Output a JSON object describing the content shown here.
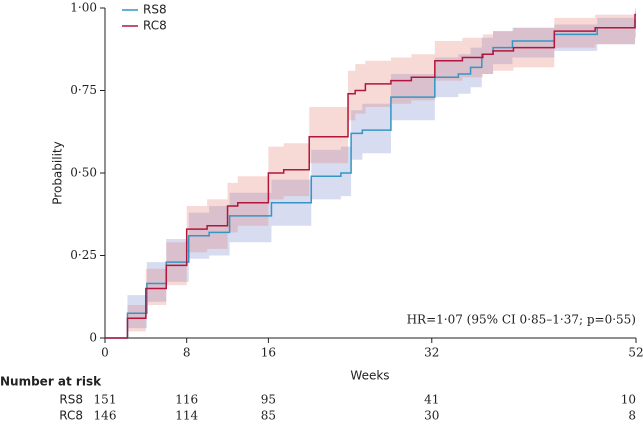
{
  "chart_data": {
    "type": "step",
    "x_label": "Weeks",
    "y_label": "Probability",
    "annotation": "HR=1·07 (95% CI 0·85–1·37; p=0·55)",
    "legend": "top-left",
    "xlim": [
      0,
      52
    ],
    "xticks": [
      0,
      8,
      16,
      32,
      52
    ],
    "ylim": [
      0,
      1
    ],
    "yticks": [
      {
        "value": 0,
        "label": "0"
      },
      {
        "value": 0.25,
        "label": "0·25"
      },
      {
        "value": 0.5,
        "label": "0·50"
      },
      {
        "value": 0.75,
        "label": "0·75"
      },
      {
        "value": 1,
        "label": "1·00"
      }
    ],
    "series": [
      {
        "name": "RS8",
        "color": "#3596c4",
        "band_color": "rgba(110,130,205,0.28)",
        "x": [
          0,
          2.2,
          4.1,
          6,
          8.2,
          10.2,
          12.2,
          16.3,
          20.2,
          23.1,
          24.1,
          25.2,
          28,
          32.3,
          34.6,
          35.8,
          36.9,
          38,
          39.9,
          44,
          48.2,
          51.9
        ],
        "values": [
          0,
          0.075,
          0.165,
          0.23,
          0.31,
          0.32,
          0.37,
          0.41,
          0.49,
          0.5,
          0.62,
          0.63,
          0.73,
          0.79,
          0.8,
          0.82,
          0.86,
          0.88,
          0.9,
          0.92,
          0.94,
          0.96
        ],
        "lower": [
          0,
          0.03,
          0.11,
          0.17,
          0.24,
          0.25,
          0.29,
          0.34,
          0.42,
          0.43,
          0.54,
          0.56,
          0.66,
          0.73,
          0.74,
          0.76,
          0.8,
          0.83,
          0.85,
          0.87,
          0.89,
          0.91
        ],
        "upper": [
          0,
          0.13,
          0.23,
          0.3,
          0.38,
          0.4,
          0.44,
          0.48,
          0.57,
          0.58,
          0.69,
          0.71,
          0.8,
          0.85,
          0.86,
          0.88,
          0.91,
          0.93,
          0.94,
          0.95,
          0.97,
          0.99
        ]
      },
      {
        "name": "RC8",
        "color": "#b3153c",
        "band_color": "rgba(228,120,108,0.28)",
        "x": [
          0,
          2.2,
          4,
          6,
          8,
          10,
          12,
          13,
          16,
          17.5,
          20,
          23.8,
          24.5,
          25.5,
          28,
          30,
          32.3,
          35,
          37,
          38,
          40,
          44,
          48,
          51.9
        ],
        "values": [
          0,
          0.06,
          0.15,
          0.22,
          0.33,
          0.34,
          0.4,
          0.41,
          0.5,
          0.51,
          0.61,
          0.74,
          0.75,
          0.77,
          0.78,
          0.79,
          0.84,
          0.85,
          0.86,
          0.87,
          0.88,
          0.93,
          0.94,
          0.98
        ],
        "lower": [
          0,
          0.02,
          0.1,
          0.16,
          0.26,
          0.27,
          0.32,
          0.34,
          0.42,
          0.43,
          0.53,
          0.66,
          0.68,
          0.7,
          0.71,
          0.72,
          0.78,
          0.79,
          0.8,
          0.81,
          0.82,
          0.88,
          0.89,
          0.94
        ],
        "upper": [
          0,
          0.1,
          0.21,
          0.29,
          0.4,
          0.42,
          0.47,
          0.49,
          0.58,
          0.59,
          0.7,
          0.81,
          0.83,
          0.84,
          0.85,
          0.86,
          0.9,
          0.91,
          0.92,
          0.93,
          0.94,
          0.97,
          0.98,
          1
        ]
      }
    ]
  },
  "risk_table": {
    "title": "Number at risk",
    "rows": [
      {
        "name": "RS8",
        "counts": [
          "151",
          "116",
          "95",
          "41",
          "10"
        ]
      },
      {
        "name": "RC8",
        "counts": [
          "146",
          "114",
          "85",
          "30",
          "8"
        ]
      }
    ]
  }
}
